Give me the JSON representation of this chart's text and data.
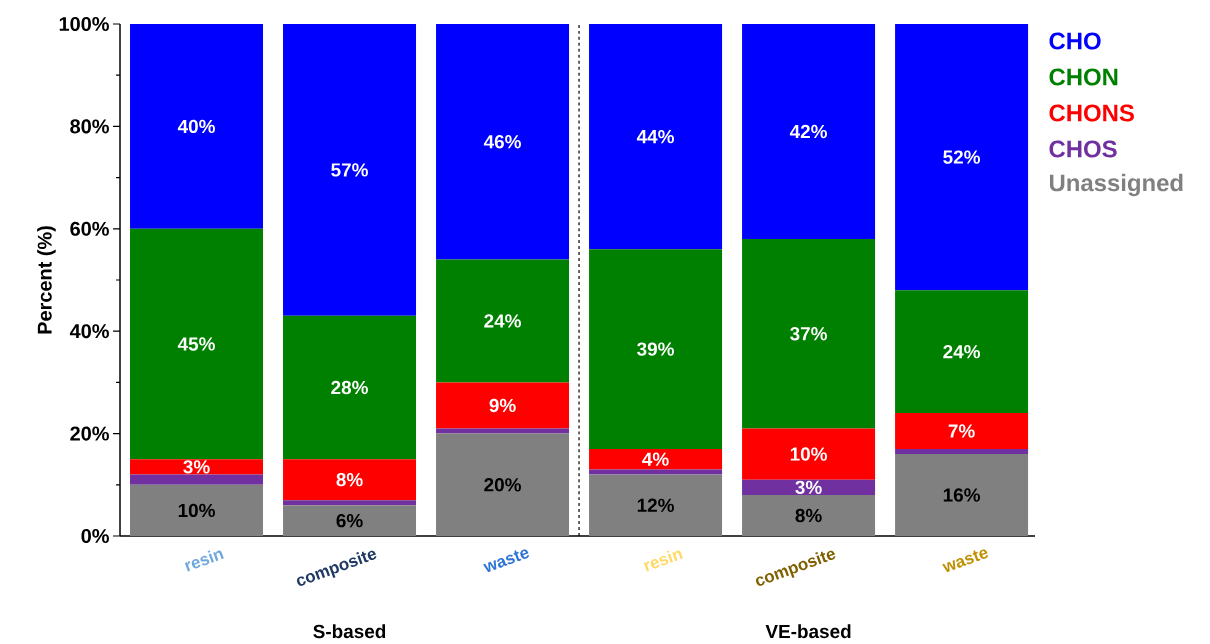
{
  "chart_data": {
    "type": "bar",
    "stacked": true,
    "categories": [
      "resin",
      "composite",
      "waste",
      "resin",
      "composite",
      "waste"
    ],
    "series": [
      {
        "name": "Unassigned",
        "color": "#808080",
        "values": [
          10,
          6,
          20,
          12,
          8,
          16
        ],
        "value_labels": [
          "10%",
          "6%",
          "20%",
          "12%",
          "8%",
          "16%"
        ]
      },
      {
        "name": "CHOS",
        "color": "#7030a0",
        "values": [
          2,
          1,
          1,
          1,
          3,
          1
        ],
        "value_labels": [
          null,
          null,
          null,
          null,
          "3%",
          null
        ]
      },
      {
        "name": "CHONS",
        "color": "#ff0000",
        "values": [
          3,
          8,
          9,
          4,
          10,
          7
        ],
        "value_labels": [
          "3%",
          "8%",
          "9%",
          "4%",
          "10%",
          "7%"
        ]
      },
      {
        "name": "CHON",
        "color": "#008000",
        "values": [
          45,
          28,
          24,
          39,
          37,
          24
        ],
        "value_labels": [
          "45%",
          "28%",
          "24%",
          "39%",
          "37%",
          "24%"
        ]
      },
      {
        "name": "CHO",
        "color": "#0000ff",
        "values": [
          40,
          57,
          46,
          44,
          42,
          52
        ],
        "value_labels": [
          "40%",
          "57%",
          "46%",
          "44%",
          "42%",
          "52%"
        ]
      }
    ],
    "ylabel": "Percent (%)",
    "ylim": [
      0,
      100
    ],
    "yticks": [
      {
        "value": 0,
        "label": "0%"
      },
      {
        "value": 20,
        "label": "20%"
      },
      {
        "value": 40,
        "label": "40%"
      },
      {
        "value": 60,
        "label": "60%"
      },
      {
        "value": 80,
        "label": "80%"
      },
      {
        "value": 100,
        "label": "100%"
      }
    ],
    "annotations": [
      "S-based",
      "VE-based"
    ],
    "legend": "right",
    "grid": false
  }
}
